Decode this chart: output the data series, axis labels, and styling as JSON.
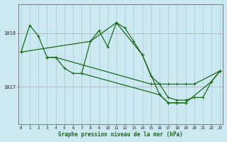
{
  "background_color": "#cce8f0",
  "grid_color_v": "#aad4e0",
  "grid_color_h": "#aaaaaa",
  "line_color": "#1a6b1a",
  "xlabel": "Graphe pression niveau de la mer (hPa)",
  "yticks": [
    1017,
    1018
  ],
  "xlim": [
    -0.3,
    23.3
  ],
  "ylim": [
    1016.3,
    1018.55
  ],
  "series_main": [
    1017.65,
    1018.15,
    1017.95,
    1017.55,
    1017.55,
    1017.35,
    1017.25,
    1017.25,
    1017.85,
    1018.05,
    1017.75,
    1018.2,
    1018.1,
    1017.85,
    1017.6,
    1017.2,
    1017.05,
    1016.8,
    1016.75,
    1016.75,
    1016.8,
    1016.8,
    1017.1,
    1017.3
  ],
  "series_flat": [
    null,
    null,
    null,
    1017.55,
    1017.55,
    null,
    null,
    null,
    null,
    null,
    null,
    null,
    null,
    null,
    null,
    1017.05,
    1017.05,
    1017.05,
    1017.05,
    1017.05,
    1017.05,
    null,
    null,
    1017.3
  ],
  "series_diag": [
    1017.65,
    null,
    null,
    null,
    null,
    null,
    null,
    null,
    1017.85,
    null,
    null,
    1018.2,
    null,
    null,
    1017.6,
    null,
    1016.85,
    1016.7,
    1016.7,
    1016.7,
    null,
    null,
    1017.1,
    1017.3
  ],
  "series_extra": [
    null,
    null,
    null,
    null,
    null,
    null,
    null,
    1017.25,
    null,
    null,
    null,
    null,
    null,
    null,
    null,
    null,
    1016.85,
    1016.7,
    1016.7,
    1016.7,
    null,
    null,
    null,
    null
  ]
}
